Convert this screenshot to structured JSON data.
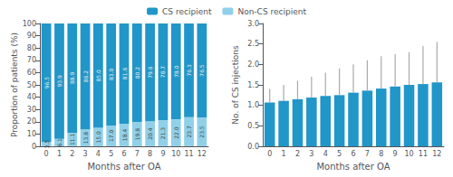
{
  "chart_data": [
    {
      "type": "bar",
      "stacked": true,
      "categories": [
        "0",
        "1",
        "2",
        "3",
        "4",
        "5",
        "6",
        "7",
        "8",
        "9",
        "10",
        "11",
        "12"
      ],
      "series": [
        {
          "name": "CS recipient",
          "color": "#2196C8",
          "values": [
            96.5,
            93.9,
            88.9,
            86.2,
            85.0,
            83.0,
            81.6,
            80.2,
            79.6,
            78.7,
            78.0,
            76.3,
            76.5
          ],
          "value_labels": [
            "96.5",
            "93.9",
            "88.9",
            "86.2",
            "85.0",
            "83.0",
            "81.6",
            "80.2",
            "79.6",
            "78.7",
            "78.0",
            "76.3",
            "76.5"
          ]
        },
        {
          "name": "Non-CS recipient",
          "color": "#90D0E8",
          "values": [
            3.5,
            6.1,
            11.1,
            13.8,
            15.0,
            17.0,
            18.4,
            19.8,
            20.4,
            21.3,
            22.0,
            23.7,
            23.5
          ],
          "value_labels": [
            "3.5",
            "6.1",
            "11.1",
            "13.8",
            "15.0",
            "17.0",
            "18.4",
            "19.8",
            "20.4",
            "21.3",
            "22.0",
            "23.7",
            "23.5"
          ]
        }
      ],
      "x_label": "Months after OA",
      "y_label": "Proportion of patients (%)",
      "ylim": [
        0,
        100
      ],
      "yticks": [
        0,
        10,
        20,
        30,
        40,
        50,
        60,
        70,
        80,
        90,
        100
      ],
      "data_labels": true,
      "legend": "top",
      "grid": false
    },
    {
      "type": "bar",
      "categories": [
        "0",
        "1",
        "2",
        "3",
        "4",
        "5",
        "6",
        "7",
        "8",
        "9",
        "10",
        "11",
        "12"
      ],
      "values": [
        1.07,
        1.11,
        1.15,
        1.19,
        1.23,
        1.25,
        1.31,
        1.36,
        1.41,
        1.46,
        1.5,
        1.52,
        1.56
      ],
      "error_upper": [
        1.4,
        1.5,
        1.6,
        1.7,
        1.8,
        1.9,
        2.0,
        2.1,
        2.2,
        2.25,
        2.3,
        2.45,
        2.55
      ],
      "color": "#2196C8",
      "x_label": "Months after OA",
      "y_label": "No. of CS injections",
      "ylim": [
        0,
        3.0
      ],
      "yticks": [
        {
          "value": 0.0,
          "label": "0.0"
        },
        0.5,
        {
          "value": 1.0,
          "label": "1.0"
        },
        1.5,
        {
          "value": 2.0,
          "label": "2.0"
        },
        2.5,
        {
          "value": 3.0,
          "label": "3.0"
        }
      ],
      "grid": false
    }
  ]
}
